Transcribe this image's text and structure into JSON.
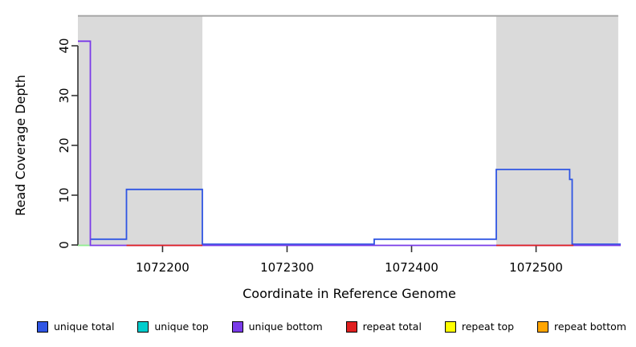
{
  "chart_data": {
    "type": "line",
    "title": "",
    "xlabel": "Coordinate in Reference Genome",
    "ylabel": "Read Coverage Depth",
    "xlim": [
      1072132,
      1072568
    ],
    "ylim": [
      0,
      46
    ],
    "xticks": [
      1072200,
      1072300,
      1072400,
      1072500
    ],
    "yticks": [
      0,
      10,
      20,
      30,
      40
    ],
    "grid": false,
    "legend_position": "bottom",
    "repeat_regions": {
      "color": "#DADADA",
      "spans": [
        [
          1072132,
          1072232
        ],
        [
          1072468,
          1072566
        ]
      ]
    },
    "coverage_cap_line": {
      "value": 46,
      "span": [
        1072132,
        1072566
      ],
      "color": "#A8A8A8"
    },
    "axis_color": "#333333",
    "series": [
      {
        "name": "unique total",
        "color": "#2F55E3",
        "dy": -1,
        "segments": [
          [
            [
              1072142,
              1
            ],
            [
              1072171,
              1
            ],
            [
              1072171,
              11
            ],
            [
              1072232,
              11
            ],
            [
              1072232,
              0
            ],
            [
              1072370,
              0
            ],
            [
              1072370,
              1
            ],
            [
              1072468,
              1
            ],
            [
              1072468,
              15
            ],
            [
              1072527,
              15
            ],
            [
              1072527,
              13
            ],
            [
              1072529,
              13
            ],
            [
              1072529,
              0
            ],
            [
              1072568,
              0
            ]
          ]
        ]
      },
      {
        "name": "unique top",
        "color": "#00CCCC",
        "dy": 0,
        "segments": []
      },
      {
        "name": "unique bottom",
        "color": "#7A3BE8",
        "dy": 0.5,
        "segments": [
          [
            [
              1072132,
              41
            ],
            [
              1072142,
              41
            ],
            [
              1072142,
              0
            ],
            [
              1072568,
              0
            ]
          ]
        ]
      },
      {
        "name": "repeat total",
        "color": "#E02020",
        "dy": 0.5,
        "segments": [
          [
            [
              1072171,
              0
            ],
            [
              1072232,
              0
            ]
          ],
          [
            [
              1072468,
              0
            ],
            [
              1072530,
              0
            ]
          ]
        ]
      },
      {
        "name": "repeat top",
        "color": "#FFFF00",
        "dy": 0,
        "segments": []
      },
      {
        "name": "repeat bottom",
        "color": "#FFA500",
        "dy": 0,
        "segments": []
      }
    ],
    "extra_marks": [
      {
        "name": "zero-coverage-mark",
        "color": "#90EE90",
        "dy": 0.5,
        "points": [
          [
            1072132,
            0
          ],
          [
            1072142,
            0
          ]
        ]
      }
    ],
    "legend": [
      {
        "label": "unique total",
        "color": "#2F55E3"
      },
      {
        "label": "unique top",
        "color": "#00CCCC"
      },
      {
        "label": "unique bottom",
        "color": "#7A3BE8"
      },
      {
        "label": "repeat total",
        "color": "#E02020"
      },
      {
        "label": "repeat top",
        "color": "#FFFF00"
      },
      {
        "label": "repeat bottom",
        "color": "#FFA500"
      }
    ]
  }
}
